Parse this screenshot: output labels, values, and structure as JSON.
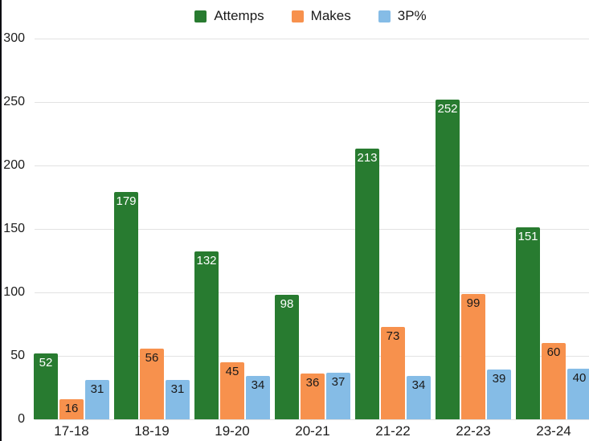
{
  "window": {
    "background": "#ffffff",
    "left_border_color": "#0a0a10"
  },
  "chart_data": {
    "type": "bar",
    "title": "",
    "categories": [
      "17-18",
      "18-19",
      "19-20",
      "20-21",
      "21-22",
      "22-23",
      "23-24"
    ],
    "series": [
      {
        "name": "Attemps",
        "color": "#287b30",
        "label_color": "#ffffff",
        "values": [
          52,
          179,
          132,
          98,
          213,
          252,
          151
        ]
      },
      {
        "name": "Makes",
        "color": "#f7914d",
        "label_color": "#1a1a1a",
        "values": [
          16,
          56,
          45,
          36,
          73,
          99,
          60
        ]
      },
      {
        "name": "3P%",
        "color": "#85bce6",
        "label_color": "#1a1a1a",
        "values": [
          31,
          31,
          34,
          37,
          34,
          39,
          40
        ]
      }
    ],
    "yticks": [
      0,
      50,
      100,
      150,
      200,
      250,
      300
    ],
    "ylim": [
      0,
      300
    ],
    "grid": true,
    "grid_color": "#e2e2e2",
    "tick_text_color": "#1c1c1c",
    "legend_position": "top",
    "value_labels": "inside-top"
  }
}
